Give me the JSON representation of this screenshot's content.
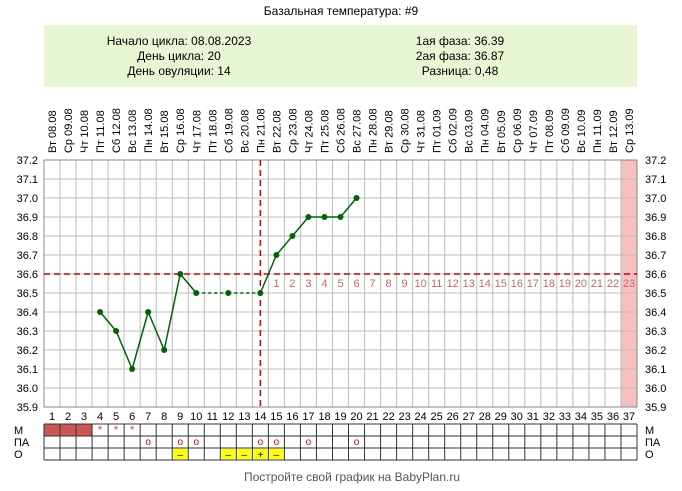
{
  "title": "Базальная температура: #9",
  "info": {
    "cycle_start": "Начало цикла: 08.08.2023",
    "cycle_day": "День цикла: 20",
    "ovulation_day": "День овуляции: 14",
    "phase1": "1ая фаза: 36.39",
    "phase2": "2ая фаза: 36.87",
    "difference": "Разница: 0,48"
  },
  "footer": "Постройте свой график на BabyPlan.ru",
  "colors": {
    "info_bg": "#e8f6d4",
    "line": "#006400",
    "guide": "#cc0000",
    "highlight_col": "#f7c0c0",
    "menses": "#cc5555",
    "grid": "#bbbbbb",
    "marker_yellow": "#ffff00",
    "post_ov_number": "#cc6666"
  },
  "chart_data": {
    "type": "line",
    "dates": [
      "Вт 08.08",
      "Ср 09.08",
      "Чт 10.08",
      "Пт 11.08",
      "Сб 12.08",
      "Вс 13.08",
      "Пн 14.08",
      "Вт 15.08",
      "Ср 16.08",
      "Чт 17.08",
      "Пт 18.08",
      "Сб 19.08",
      "Вс 20.08",
      "Пн 21.08",
      "Вт 22.08",
      "Ср 23.08",
      "Чт 24.08",
      "Пт 25.08",
      "Сб 26.08",
      "Вс 27.08",
      "Пн 28.08",
      "Вт 29.08",
      "Ср 30.08",
      "Чт 31.08",
      "Пт 01.09",
      "Сб 02.09",
      "Вс 03.09",
      "Пн 04.09",
      "Вт 05.09",
      "Ср 06.09",
      "Чт 07.09",
      "Пт 08.09",
      "Сб 09.09",
      "Вс 10.09",
      "Пн 11.09",
      "Вт 12.09",
      "Ср 13.09"
    ],
    "days": [
      1,
      2,
      3,
      4,
      5,
      6,
      7,
      8,
      9,
      10,
      11,
      12,
      13,
      14,
      15,
      16,
      17,
      18,
      19,
      20,
      21,
      22,
      23,
      24,
      25,
      26,
      27,
      28,
      29,
      30,
      31,
      32,
      33,
      34,
      35,
      36,
      37
    ],
    "temperatures": [
      null,
      null,
      null,
      36.4,
      36.3,
      36.1,
      36.4,
      36.2,
      36.6,
      36.5,
      null,
      36.5,
      null,
      36.5,
      36.7,
      36.8,
      36.9,
      36.9,
      36.9,
      37.0
    ],
    "dashed_segments": [
      [
        10,
        12
      ],
      [
        12,
        14
      ]
    ],
    "yticks": [
      "35.9",
      "36.0",
      "36.1",
      "36.2",
      "36.3",
      "36.4",
      "36.5",
      "36.6",
      "36.7",
      "36.8",
      "36.9",
      "37.0",
      "37.1",
      "37.2"
    ],
    "ylim": [
      35.9,
      37.2
    ],
    "coverline": 36.6,
    "ovulation_day": 14,
    "post_ovulation_numbers": [
      "1",
      "2",
      "3",
      "4",
      "5",
      "6",
      "7",
      "8",
      "9",
      "10",
      "11",
      "12",
      "13",
      "14",
      "15",
      "16",
      "17",
      "18",
      "19",
      "20",
      "21",
      "22",
      "23"
    ],
    "highlight_day": 37,
    "rows": {
      "M": {
        "label": "М",
        "filled_days": [
          1,
          2,
          3
        ],
        "star_days": [
          4,
          5,
          6
        ],
        "star": "*"
      },
      "PA": {
        "label": "ПА",
        "circle_days": [
          7,
          9,
          10,
          14,
          15,
          17,
          20
        ],
        "mark": "o"
      },
      "O": {
        "label": "О",
        "marks": [
          {
            "day": 9,
            "v": "–"
          },
          {
            "day": 12,
            "v": "–"
          },
          {
            "day": 13,
            "v": "–"
          },
          {
            "day": 14,
            "v": "+"
          },
          {
            "day": 15,
            "v": "–"
          }
        ]
      }
    }
  }
}
